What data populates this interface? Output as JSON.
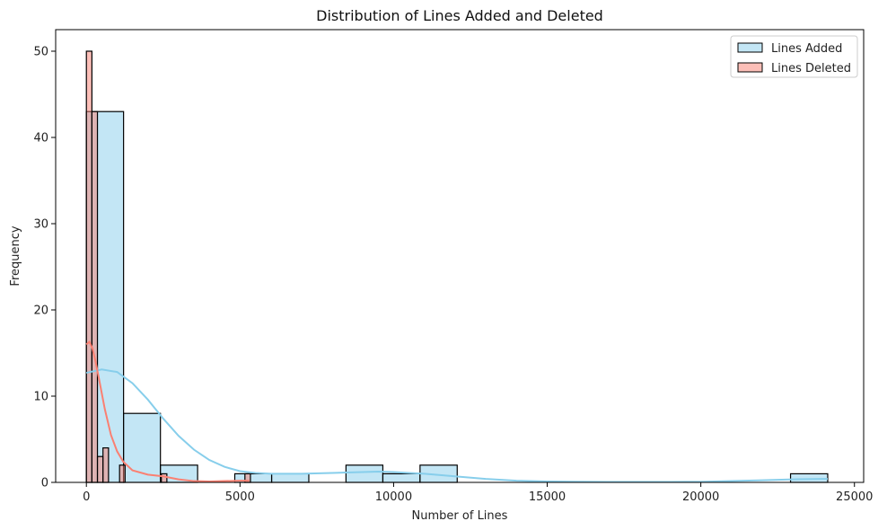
{
  "chart_data": {
    "type": "bar",
    "subtype": "histogram-with-kde",
    "title": "Distribution of Lines Added and Deleted",
    "xlabel": "Number of Lines",
    "ylabel": "Frequency",
    "xlim": [
      -1000,
      25300
    ],
    "ylim": [
      0,
      52.5
    ],
    "xticks": [
      0,
      5000,
      10000,
      15000,
      20000,
      25000
    ],
    "yticks": [
      0,
      10,
      20,
      30,
      40,
      50
    ],
    "grid": false,
    "legend_position": "top-right",
    "series": [
      {
        "name": "Lines Added",
        "color": "#87ceeb",
        "bins": [
          {
            "x0": 0,
            "x1": 1210,
            "count": 43
          },
          {
            "x0": 1210,
            "x1": 2410,
            "count": 8
          },
          {
            "x0": 2410,
            "x1": 3620,
            "count": 2
          },
          {
            "x0": 4830,
            "x1": 6030,
            "count": 1
          },
          {
            "x0": 6030,
            "x1": 7240,
            "count": 1
          },
          {
            "x0": 8450,
            "x1": 9650,
            "count": 2
          },
          {
            "x0": 9650,
            "x1": 10860,
            "count": 1
          },
          {
            "x0": 10860,
            "x1": 12070,
            "count": 2
          },
          {
            "x0": 22920,
            "x1": 24130,
            "count": 1
          }
        ],
        "kde": [
          [
            0,
            12.7
          ],
          [
            500,
            13.1
          ],
          [
            1000,
            12.8
          ],
          [
            1500,
            11.5
          ],
          [
            2000,
            9.6
          ],
          [
            2500,
            7.4
          ],
          [
            3000,
            5.4
          ],
          [
            3500,
            3.8
          ],
          [
            4000,
            2.6
          ],
          [
            4500,
            1.8
          ],
          [
            5000,
            1.3
          ],
          [
            5500,
            1.1
          ],
          [
            6000,
            1.0
          ],
          [
            7000,
            1.0
          ],
          [
            8000,
            1.1
          ],
          [
            9000,
            1.2
          ],
          [
            9500,
            1.25
          ],
          [
            10000,
            1.2
          ],
          [
            10500,
            1.1
          ],
          [
            11000,
            1.0
          ],
          [
            12000,
            0.7
          ],
          [
            13000,
            0.4
          ],
          [
            14000,
            0.2
          ],
          [
            15000,
            0.1
          ],
          [
            17000,
            0.05
          ],
          [
            19000,
            0.05
          ],
          [
            20000,
            0.07
          ],
          [
            21000,
            0.15
          ],
          [
            22000,
            0.25
          ],
          [
            23000,
            0.35
          ],
          [
            24000,
            0.4
          ],
          [
            24130,
            0.4
          ]
        ]
      },
      {
        "name": "Lines Deleted",
        "color": "#fa8072",
        "bins": [
          {
            "x0": 0,
            "x1": 180,
            "count": 50
          },
          {
            "x0": 180,
            "x1": 360,
            "count": 43
          },
          {
            "x0": 360,
            "x1": 540,
            "count": 3
          },
          {
            "x0": 540,
            "x1": 720,
            "count": 4
          },
          {
            "x0": 1080,
            "x1": 1260,
            "count": 2
          },
          {
            "x0": 2440,
            "x1": 2620,
            "count": 1
          },
          {
            "x0": 5160,
            "x1": 5340,
            "count": 1
          }
        ],
        "kde": [
          [
            0,
            16.0
          ],
          [
            100,
            16.3
          ],
          [
            200,
            15.5
          ],
          [
            300,
            14.0
          ],
          [
            400,
            12.2
          ],
          [
            600,
            8.5
          ],
          [
            800,
            5.5
          ],
          [
            1000,
            3.6
          ],
          [
            1200,
            2.4
          ],
          [
            1500,
            1.4
          ],
          [
            2000,
            0.9
          ],
          [
            2500,
            0.7
          ],
          [
            3000,
            0.35
          ],
          [
            3500,
            0.15
          ],
          [
            4000,
            0.1
          ],
          [
            4500,
            0.15
          ],
          [
            5000,
            0.2
          ],
          [
            5300,
            0.2
          ]
        ]
      }
    ]
  }
}
